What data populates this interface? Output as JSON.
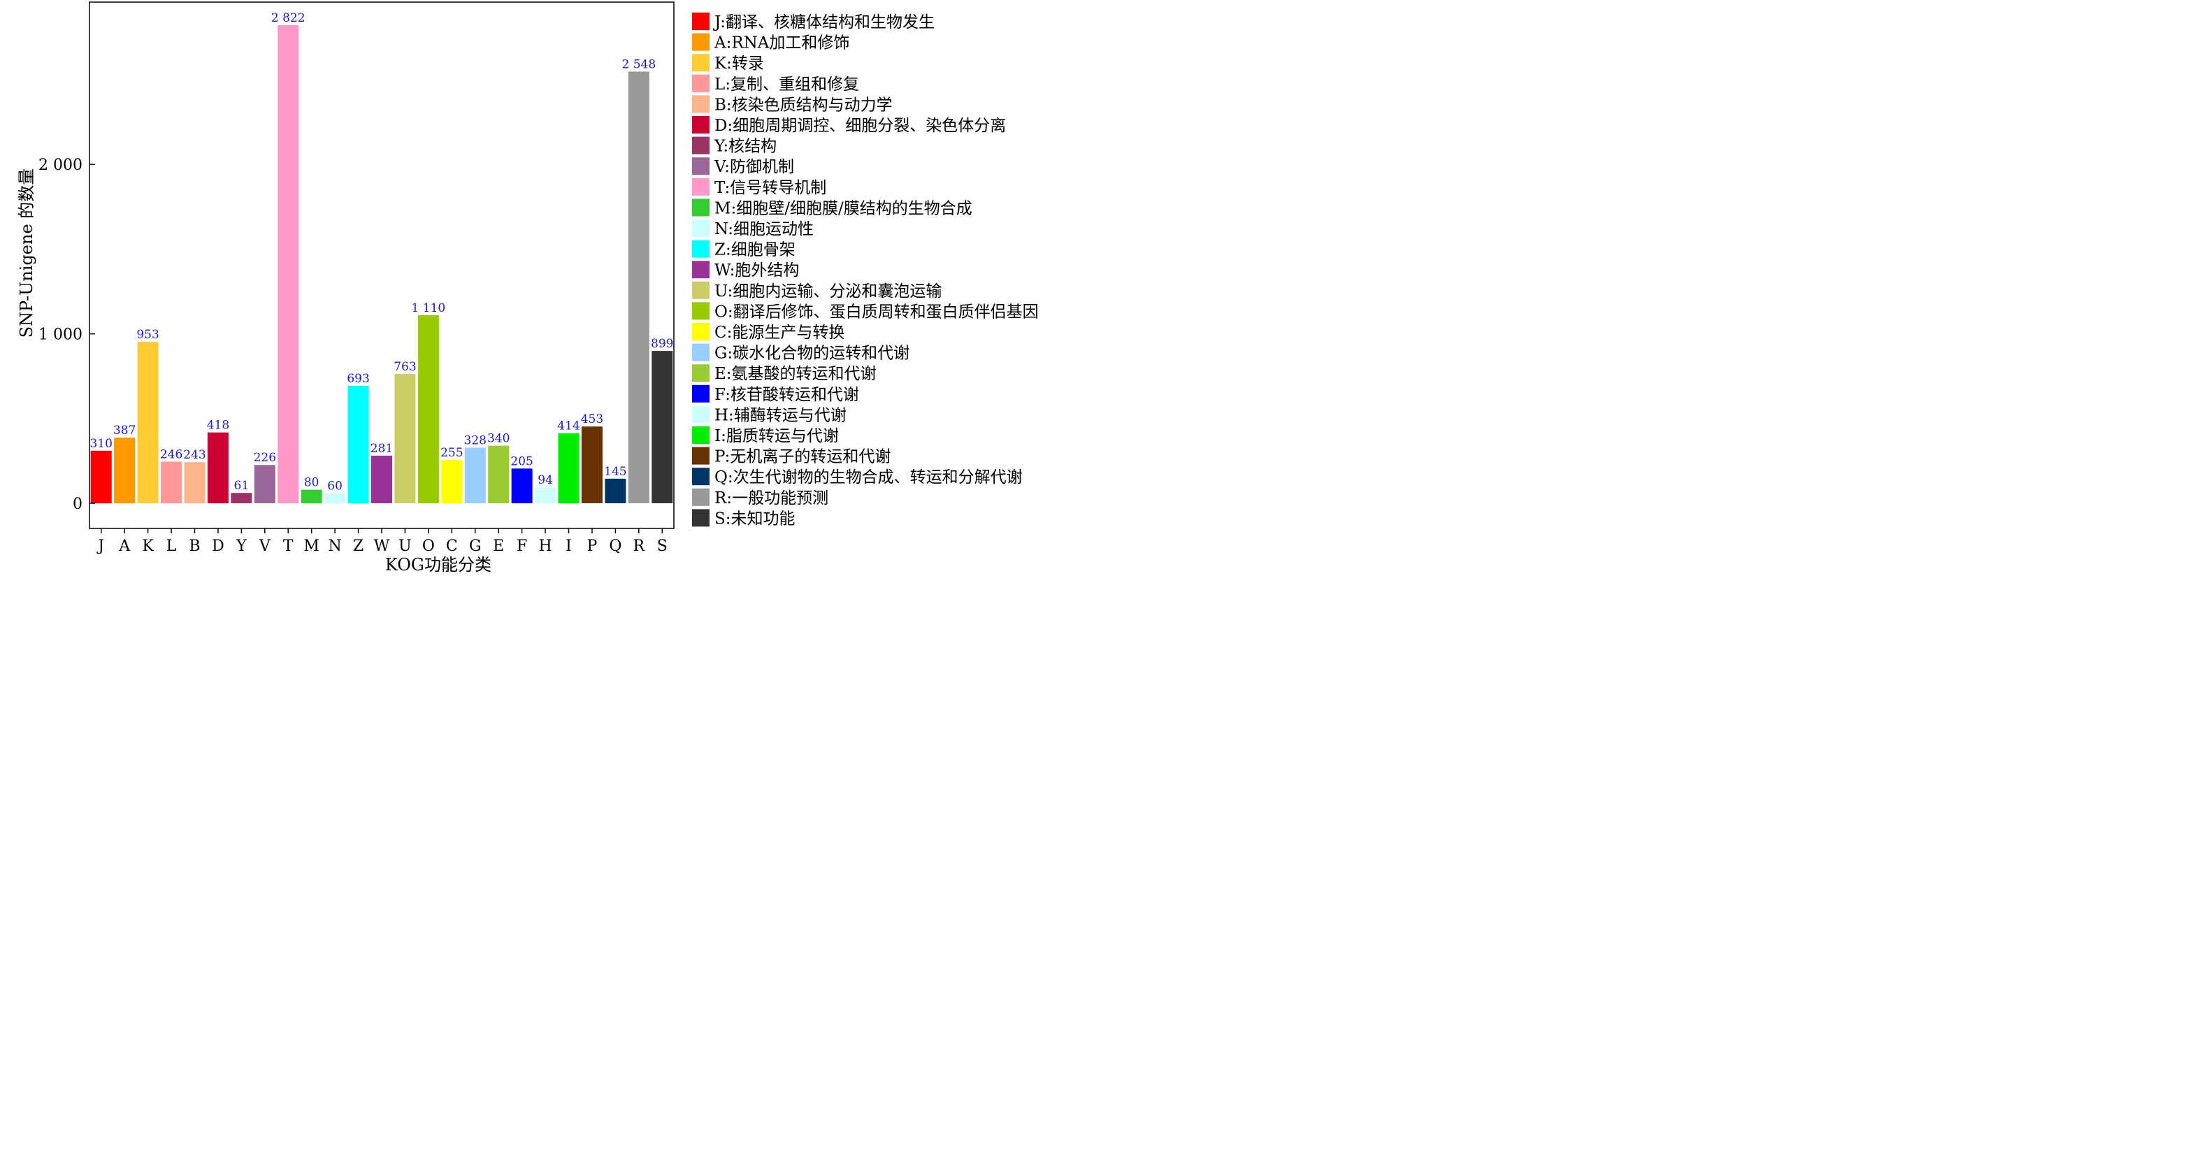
{
  "chart_data": {
    "type": "bar",
    "xlabel": "KOG功能分类",
    "ylabel": "SNP-Unigene 的数量",
    "ylim": [
      0,
      2950
    ],
    "yticks": [
      {
        "value": 0,
        "label": "0"
      },
      {
        "value": 1000,
        "label": "1 000"
      },
      {
        "value": 2000,
        "label": "2 000"
      }
    ],
    "grid": false,
    "legend_position": "right",
    "bars": [
      {
        "cat": "J",
        "value": 310,
        "label": "310",
        "color": "#ff0000",
        "legend": "J:翻译、核糖体结构和生物发生"
      },
      {
        "cat": "A",
        "value": 387,
        "label": "387",
        "color": "#ff9900",
        "legend": "A:RNA加工和修饰"
      },
      {
        "cat": "K",
        "value": 953,
        "label": "953",
        "color": "#ffcc33",
        "legend": "K:转录"
      },
      {
        "cat": "L",
        "value": 246,
        "label": "246",
        "color": "#ff9999",
        "legend": "L:复制、重组和修复"
      },
      {
        "cat": "B",
        "value": 243,
        "label": "243",
        "color": "#ffb38a",
        "legend": "B:核染色质结构与动力学"
      },
      {
        "cat": "D",
        "value": 418,
        "label": "418",
        "color": "#cc0033",
        "legend": "D:细胞周期调控、细胞分裂、染色体分离"
      },
      {
        "cat": "Y",
        "value": 61,
        "label": "61",
        "color": "#993366",
        "legend": "Y:核结构"
      },
      {
        "cat": "V",
        "value": 226,
        "label": "226",
        "color": "#996699",
        "legend": "V:防御机制"
      },
      {
        "cat": "T",
        "value": 2822,
        "label": "2 822",
        "color": "#ff99cc",
        "legend": "T:信号转导机制"
      },
      {
        "cat": "M",
        "value": 80,
        "label": "80",
        "color": "#33cc33",
        "legend": "M:细胞壁/细胞膜/膜结构的生物合成"
      },
      {
        "cat": "N",
        "value": 60,
        "label": "60",
        "color": "#ccffff",
        "legend": "N:细胞运动性"
      },
      {
        "cat": "Z",
        "value": 693,
        "label": "693",
        "color": "#00ffff",
        "legend": "Z:细胞骨架"
      },
      {
        "cat": "W",
        "value": 281,
        "label": "281",
        "color": "#993399",
        "legend": "W:胞外结构"
      },
      {
        "cat": "U",
        "value": 763,
        "label": "763",
        "color": "#cccc66",
        "legend": "U:细胞内运输、分泌和囊泡运输"
      },
      {
        "cat": "O",
        "value": 1110,
        "label": "1 110",
        "color": "#99cc00",
        "legend": "O:翻译后修饰、蛋白质周转和蛋白质伴侣基因"
      },
      {
        "cat": "C",
        "value": 255,
        "label": "255",
        "color": "#ffff00",
        "legend": "C:能源生产与转换"
      },
      {
        "cat": "G",
        "value": 328,
        "label": "328",
        "color": "#99ccff",
        "legend": "G:碳水化合物的运转和代谢"
      },
      {
        "cat": "E",
        "value": 340,
        "label": "340",
        "color": "#99cc33",
        "legend": "E:氨基酸的转运和代谢"
      },
      {
        "cat": "F",
        "value": 205,
        "label": "205",
        "color": "#0000ff",
        "legend": "F:核苷酸转运和代谢"
      },
      {
        "cat": "H",
        "value": 94,
        "label": "94",
        "color": "#ccffff",
        "legend": "H:辅酶转运与代谢"
      },
      {
        "cat": "I",
        "value": 414,
        "label": "414",
        "color": "#00ee00",
        "legend": "I:脂质转运与代谢"
      },
      {
        "cat": "P",
        "value": 453,
        "label": "453",
        "color": "#663300",
        "legend": "P:无机离子的转运和代谢"
      },
      {
        "cat": "Q",
        "value": 145,
        "label": "145",
        "color": "#003366",
        "legend": "Q:次生代谢物的生物合成、转运和分解代谢"
      },
      {
        "cat": "R",
        "value": 2548,
        "label": "2 548",
        "color": "#999999",
        "legend": "R:一般功能预测"
      },
      {
        "cat": "S",
        "value": 899,
        "label": "899",
        "color": "#333333",
        "legend": "S:未知功能"
      }
    ]
  }
}
